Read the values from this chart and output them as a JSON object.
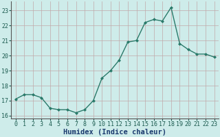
{
  "x": [
    0,
    1,
    2,
    3,
    4,
    5,
    6,
    7,
    8,
    9,
    10,
    11,
    12,
    13,
    14,
    15,
    16,
    17,
    18,
    19,
    20,
    21,
    22,
    23
  ],
  "y": [
    17.1,
    17.4,
    17.4,
    17.2,
    16.5,
    16.4,
    16.4,
    16.2,
    16.4,
    17.0,
    18.5,
    19.0,
    19.7,
    20.9,
    21.0,
    22.2,
    22.4,
    22.3,
    23.2,
    20.8,
    20.4,
    20.1,
    20.1,
    19.9
  ],
  "line_color": "#2a7a6a",
  "marker": "D",
  "markersize": 2.0,
  "linewidth": 1.0,
  "xlabel": "Humidex (Indice chaleur)",
  "xlabel_fontsize": 7.5,
  "xlabel_color": "#1a3a6e",
  "ylim": [
    15.8,
    23.6
  ],
  "yticks": [
    16,
    17,
    18,
    19,
    20,
    21,
    22,
    23
  ],
  "xticks": [
    0,
    1,
    2,
    3,
    4,
    5,
    6,
    7,
    8,
    9,
    10,
    11,
    12,
    13,
    14,
    15,
    16,
    17,
    18,
    19,
    20,
    21,
    22,
    23
  ],
  "xtick_labels": [
    "0",
    "1",
    "2",
    "3",
    "4",
    "5",
    "6",
    "7",
    "8",
    "9",
    "10",
    "11",
    "12",
    "13",
    "14",
    "15",
    "16",
    "17",
    "18",
    "19",
    "20",
    "21",
    "22",
    "23"
  ],
  "xlim": [
    -0.5,
    23.5
  ],
  "background_color": "#ceecea",
  "grid_color": "#c0a8a8",
  "tick_fontsize": 6.0,
  "tick_color": "#1a5a4e"
}
